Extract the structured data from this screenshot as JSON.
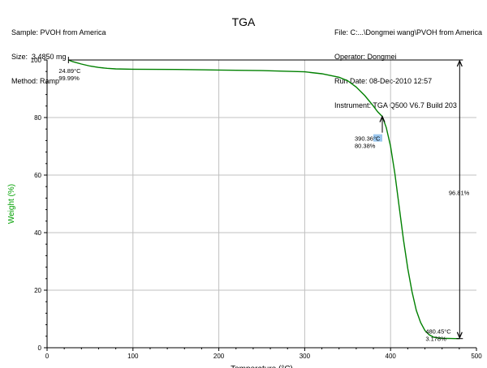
{
  "header": {
    "left": [
      "Sample: PVOH from America",
      "Size:  3.4850 mg",
      "Method: Ramp"
    ],
    "right": [
      "File: C:...\\Dongmei wang\\PVOH from America",
      "Operator: Dongmei",
      "Run Date: 08-Dec-2010 12:57",
      "Instrument: TGA Q500 V6.7 Build 203"
    ],
    "title": "TGA"
  },
  "colors": {
    "curve": "#008000",
    "ylabel": "#00a000",
    "grid": "#c0c0c0",
    "highlight": "#9cc8ef"
  },
  "chart_data": {
    "type": "line",
    "title": "TGA",
    "xlabel": "Temperature (°C)",
    "ylabel": "Weight (%)",
    "xlim": [
      0,
      500
    ],
    "ylim": [
      0,
      100
    ],
    "xticks": [
      "0",
      "100",
      "200",
      "300",
      "400",
      "500"
    ],
    "yticks": [
      "0",
      "20",
      "40",
      "60",
      "80",
      "100"
    ],
    "grid": true,
    "series": [
      {
        "x": [
          24.89,
          30,
          40,
          50,
          60,
          70,
          80,
          100,
          150,
          200,
          250,
          300,
          320,
          340,
          350,
          360,
          370,
          380,
          385,
          390.36,
          395,
          400,
          405,
          410,
          415,
          420,
          425,
          430,
          435,
          440,
          445,
          450,
          455,
          460,
          465,
          470,
          475,
          480.45
        ],
        "y": [
          99.99,
          99.4,
          98.6,
          97.9,
          97.4,
          97.1,
          96.9,
          96.8,
          96.7,
          96.5,
          96.3,
          95.9,
          95.2,
          94.0,
          92.8,
          90.6,
          87.6,
          84.0,
          82.0,
          80.38,
          76.5,
          70.0,
          60.5,
          49.0,
          37.5,
          27.5,
          19.5,
          13.0,
          8.8,
          6.0,
          4.5,
          3.7,
          3.4,
          3.3,
          3.25,
          3.2,
          3.18,
          3.178
        ]
      }
    ],
    "annotations": [
      {
        "lines": [
          "24.89°C",
          "99.99%"
        ],
        "x": 24.89,
        "y": 99.99
      },
      {
        "lines": [
          "390.36°C",
          "80.38%"
        ],
        "x": 390.36,
        "y": 80.38
      },
      {
        "lines": [
          "480.45°C",
          "3.178%"
        ],
        "x": 480.45,
        "y": 3.178
      },
      {
        "lines": [
          "96.81%"
        ],
        "x": 480.45,
        "y": 54
      }
    ]
  }
}
